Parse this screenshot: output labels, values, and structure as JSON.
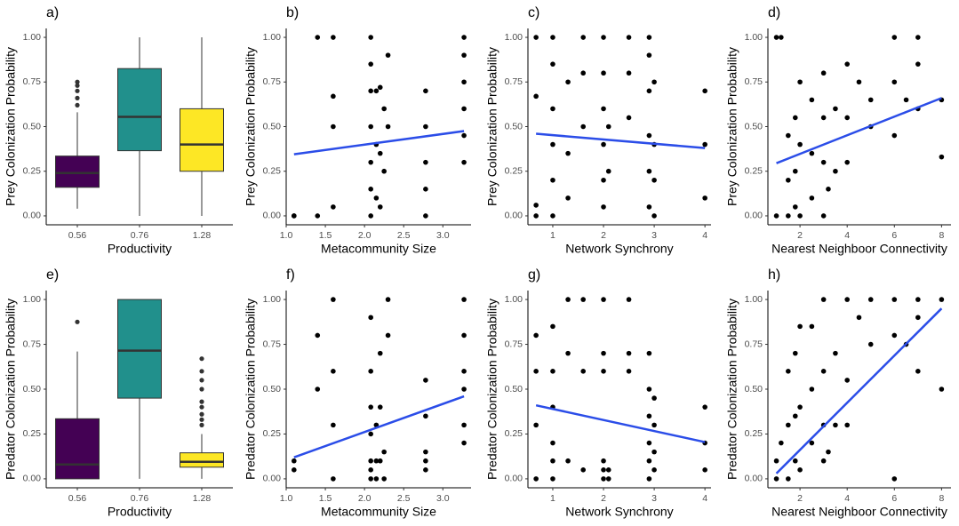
{
  "chart_data": [
    {
      "type": "box",
      "panel_label": "a)",
      "xlabel": "Productivity",
      "ylabel": "Prey Colonization Probability",
      "categories": [
        "0.56",
        "0.76",
        "1.28"
      ],
      "boxes": [
        {
          "q1": 0.16,
          "median": 0.24,
          "q3": 0.335,
          "whisker_low": 0.04,
          "whisker_high": 0.58,
          "outliers": [
            0.62,
            0.66,
            0.7,
            0.73,
            0.75
          ],
          "color": "#440154"
        },
        {
          "q1": 0.365,
          "median": 0.555,
          "q3": 0.825,
          "whisker_low": 0,
          "whisker_high": 1,
          "outliers": [],
          "color": "#21908c"
        },
        {
          "q1": 0.25,
          "median": 0.4,
          "q3": 0.6,
          "whisker_low": 0,
          "whisker_high": 1,
          "outliers": [],
          "color": "#fde725"
        }
      ],
      "ylim": [
        -0.05,
        1.05
      ],
      "yticks": [
        {
          "value": 0,
          "label": "0.00"
        },
        {
          "value": 0.25,
          "label": "0.25"
        },
        {
          "value": 0.5,
          "label": "0.50"
        },
        {
          "value": 0.75,
          "label": "0.75"
        },
        {
          "value": 1,
          "label": "1.00"
        }
      ]
    },
    {
      "type": "scatter",
      "panel_label": "b)",
      "xlabel": "Metacommunity Size",
      "ylabel": "Prey Colonization Probability",
      "x": [
        1.1,
        1.1,
        1.4,
        1.4,
        1.6,
        1.6,
        1.6,
        1.6,
        2.08,
        2.08,
        2.08,
        2.08,
        2.08,
        2.08,
        2.08,
        2.15,
        2.15,
        2.15,
        2.2,
        2.2,
        2.2,
        2.25,
        2.25,
        2.3,
        2.3,
        2.78,
        2.78,
        2.78,
        2.78,
        2.78,
        3.27,
        3.27,
        3.27,
        3.27,
        3.27,
        3.27
      ],
      "y": [
        0,
        0,
        1,
        0,
        1,
        0.67,
        0.5,
        0.05,
        1,
        0.85,
        0.7,
        0.5,
        0.3,
        0.15,
        0,
        0.7,
        0.4,
        0.1,
        0.72,
        0.35,
        0.05,
        0.6,
        0.25,
        0.9,
        0.5,
        0.7,
        0.5,
        0.3,
        0.15,
        0,
        1,
        0.9,
        0.75,
        0.6,
        0.45,
        0.3
      ],
      "color": "#000000",
      "fit": {
        "x": [
          1.1,
          3.27
        ],
        "y": [
          0.345,
          0.475
        ],
        "color": "#2b4de8"
      },
      "xlim": [
        1.0,
        3.36
      ],
      "xticks": [
        {
          "value": 1,
          "label": "1.0"
        },
        {
          "value": 1.5,
          "label": "1.5"
        },
        {
          "value": 2,
          "label": "2.0"
        },
        {
          "value": 2.5,
          "label": "2.5"
        },
        {
          "value": 3,
          "label": "3.0"
        }
      ],
      "ylim": [
        -0.05,
        1.05
      ],
      "yticks": [
        {
          "value": 0,
          "label": "0.00"
        },
        {
          "value": 0.25,
          "label": "0.25"
        },
        {
          "value": 0.5,
          "label": "0.50"
        },
        {
          "value": 0.75,
          "label": "0.75"
        },
        {
          "value": 1,
          "label": "1.00"
        }
      ]
    },
    {
      "type": "scatter",
      "panel_label": "c)",
      "xlabel": "Network Synchrony",
      "ylabel": "Prey Colonization Probability",
      "x": [
        0.67,
        0.67,
        0.67,
        0.67,
        1,
        1,
        1,
        1,
        1,
        1,
        1.3,
        1.3,
        1.3,
        1.6,
        1.6,
        1.6,
        2,
        2,
        2,
        2,
        2,
        2,
        2.1,
        2.1,
        2.5,
        2.5,
        2.5,
        2.9,
        2.9,
        2.9,
        2.9,
        2.9,
        2.9,
        3,
        3,
        3,
        3,
        4,
        4,
        4
      ],
      "y": [
        1,
        0.67,
        0.06,
        0,
        1,
        0.85,
        0.6,
        0.4,
        0.2,
        0,
        0.75,
        0.35,
        0.1,
        1,
        0.8,
        0.5,
        1,
        0.8,
        0.6,
        0.4,
        0.2,
        0.05,
        0.5,
        0.25,
        1,
        0.8,
        0.55,
        1,
        0.9,
        0.7,
        0.45,
        0.25,
        0.05,
        0.75,
        0.4,
        0.2,
        0,
        0.7,
        0.4,
        0.1
      ],
      "color": "#000000",
      "fit": {
        "x": [
          0.67,
          4
        ],
        "y": [
          0.46,
          0.38
        ],
        "color": "#2b4de8"
      },
      "xlim": [
        0.51,
        4.12
      ],
      "xticks": [
        1,
        2,
        3,
        4
      ],
      "ylim": [
        -0.05,
        1.05
      ],
      "yticks": [
        {
          "value": 0,
          "label": "0.00"
        },
        {
          "value": 0.25,
          "label": "0.25"
        },
        {
          "value": 0.5,
          "label": "0.50"
        },
        {
          "value": 0.75,
          "label": "0.75"
        },
        {
          "value": 1,
          "label": "1.00"
        }
      ]
    },
    {
      "type": "scatter",
      "panel_label": "d)",
      "xlabel": "Nearest Neighboor Connectivity",
      "ylabel": "Prey Colonization Probability",
      "x": [
        1,
        1,
        1.2,
        1.5,
        1.5,
        1.5,
        1.8,
        1.8,
        1.8,
        2,
        2,
        2,
        2.5,
        2.5,
        2.5,
        3,
        3,
        3,
        3,
        3.2,
        3.5,
        3.5,
        4,
        4,
        4,
        4.5,
        5,
        5,
        6,
        6,
        6,
        6.5,
        7,
        7,
        7,
        8,
        8
      ],
      "y": [
        1,
        0,
        1,
        0.45,
        0.2,
        0,
        0.55,
        0.25,
        0.05,
        0.75,
        0.4,
        0,
        0.65,
        0.35,
        0.1,
        0.8,
        0.55,
        0.3,
        0,
        0.15,
        0.6,
        0.25,
        0.85,
        0.55,
        0.3,
        0.75,
        0.5,
        0.65,
        1,
        0.75,
        0.45,
        0.65,
        1,
        0.85,
        0.6,
        0.65,
        0.33
      ],
      "color": "#000000",
      "fit": {
        "x": [
          1,
          8
        ],
        "y": [
          0.295,
          0.66
        ],
        "color": "#2b4de8"
      },
      "xlim": [
        0.64,
        8.4
      ],
      "xticks": [
        2,
        4,
        6,
        8
      ],
      "ylim": [
        -0.05,
        1.05
      ],
      "yticks": [
        {
          "value": 0,
          "label": "0.00"
        },
        {
          "value": 0.25,
          "label": "0.25"
        },
        {
          "value": 0.5,
          "label": "0.50"
        },
        {
          "value": 0.75,
          "label": "0.75"
        },
        {
          "value": 1,
          "label": "1.00"
        }
      ]
    },
    {
      "type": "box",
      "panel_label": "e)",
      "xlabel": "Productivity",
      "ylabel": "Predator Colonization Probability",
      "categories": [
        "0.56",
        "0.76",
        "1.28"
      ],
      "boxes": [
        {
          "q1": 0,
          "median": 0.08,
          "q3": 0.335,
          "whisker_low": 0,
          "whisker_high": 0.71,
          "outliers": [
            0.875
          ],
          "color": "#440154"
        },
        {
          "q1": 0.45,
          "median": 0.715,
          "q3": 1,
          "whisker_low": 0,
          "whisker_high": 1,
          "outliers": [],
          "color": "#21908c"
        },
        {
          "q1": 0.065,
          "median": 0.095,
          "q3": 0.145,
          "whisker_low": 0,
          "whisker_high": 0.25,
          "outliers": [
            0.3,
            0.33,
            0.36,
            0.4,
            0.43,
            0.5,
            0.55,
            0.6,
            0.67
          ],
          "color": "#fde725"
        }
      ],
      "ylim": [
        -0.05,
        1.05
      ],
      "yticks": [
        {
          "value": 0,
          "label": "0.00"
        },
        {
          "value": 0.25,
          "label": "0.25"
        },
        {
          "value": 0.5,
          "label": "0.50"
        },
        {
          "value": 0.75,
          "label": "0.75"
        },
        {
          "value": 1,
          "label": "1.00"
        }
      ]
    },
    {
      "type": "scatter",
      "panel_label": "f)",
      "xlabel": "Metacommunity Size",
      "ylabel": "Predator Colonization Probability",
      "x": [
        1.1,
        1.1,
        1.4,
        1.4,
        1.6,
        1.6,
        1.6,
        1.6,
        2.08,
        2.08,
        2.08,
        2.08,
        2.08,
        2.08,
        2.08,
        2.15,
        2.15,
        2.15,
        2.2,
        2.2,
        2.2,
        2.25,
        2.25,
        2.3,
        2.3,
        2.78,
        2.78,
        2.78,
        2.78,
        2.78,
        3.27,
        3.27,
        3.27,
        3.27,
        3.27,
        3.27
      ],
      "y": [
        0.1,
        0.05,
        0.8,
        0.5,
        1,
        0.6,
        0.3,
        0,
        0.9,
        0.6,
        0.4,
        0.25,
        0.1,
        0.05,
        0,
        0.3,
        0.1,
        0,
        0.7,
        0.4,
        0.1,
        0.15,
        0,
        1,
        0.8,
        0.55,
        0.35,
        0.15,
        0.1,
        0.05,
        1,
        0.8,
        0.6,
        0.5,
        0.3,
        0.2
      ],
      "color": "#000000",
      "fit": {
        "x": [
          1.1,
          3.27
        ],
        "y": [
          0.12,
          0.46
        ],
        "color": "#2b4de8"
      },
      "xlim": [
        1.0,
        3.36
      ],
      "xticks": [
        {
          "value": 1,
          "label": "1.0"
        },
        {
          "value": 1.5,
          "label": "1.5"
        },
        {
          "value": 2,
          "label": "2.0"
        },
        {
          "value": 2.5,
          "label": "2.5"
        },
        {
          "value": 3,
          "label": "3.0"
        }
      ],
      "ylim": [
        -0.05,
        1.05
      ],
      "yticks": [
        {
          "value": 0,
          "label": "0.00"
        },
        {
          "value": 0.25,
          "label": "0.25"
        },
        {
          "value": 0.5,
          "label": "0.50"
        },
        {
          "value": 0.75,
          "label": "0.75"
        },
        {
          "value": 1,
          "label": "1.00"
        }
      ]
    },
    {
      "type": "scatter",
      "panel_label": "g)",
      "xlabel": "Network Synchrony",
      "ylabel": "Predator Colonization Probability",
      "x": [
        0.67,
        0.67,
        0.67,
        0.67,
        1,
        1,
        1,
        1,
        1,
        1,
        1.3,
        1.3,
        1.3,
        1.6,
        1.6,
        1.6,
        2,
        2,
        2,
        2,
        2,
        2,
        2.1,
        2.1,
        2.5,
        2.5,
        2.5,
        2.9,
        2.9,
        2.9,
        2.9,
        2.9,
        2.9,
        3,
        3,
        3,
        3,
        4,
        4,
        4
      ],
      "y": [
        0.8,
        0.6,
        0.3,
        0,
        0.85,
        0.6,
        0.4,
        0.2,
        0.1,
        0,
        1,
        0.7,
        0.1,
        1,
        0.6,
        0.05,
        1,
        0.7,
        0.6,
        0.1,
        0.05,
        0,
        0.05,
        0,
        1,
        0.7,
        0.6,
        0.7,
        0.5,
        0.35,
        0.2,
        0.1,
        0,
        0.45,
        0.3,
        0.15,
        0.05,
        0.4,
        0.2,
        0.05
      ],
      "color": "#000000",
      "fit": {
        "x": [
          0.67,
          4
        ],
        "y": [
          0.41,
          0.205
        ],
        "color": "#2b4de8"
      },
      "xlim": [
        0.51,
        4.12
      ],
      "xticks": [
        1,
        2,
        3,
        4
      ],
      "ylim": [
        -0.05,
        1.05
      ],
      "yticks": [
        {
          "value": 0,
          "label": "0.00"
        },
        {
          "value": 0.25,
          "label": "0.25"
        },
        {
          "value": 0.5,
          "label": "0.50"
        },
        {
          "value": 0.75,
          "label": "0.75"
        },
        {
          "value": 1,
          "label": "1.00"
        }
      ]
    },
    {
      "type": "scatter",
      "panel_label": "h)",
      "xlabel": "Nearest Neighboor Connectivity",
      "ylabel": "Predator Colonization Probability",
      "x": [
        1,
        1,
        1.2,
        1.5,
        1.5,
        1.5,
        1.8,
        1.8,
        1.8,
        2,
        2,
        2,
        2.5,
        2.5,
        2.5,
        3,
        3,
        3,
        3,
        3.2,
        3.5,
        3.5,
        4,
        4,
        4,
        4.5,
        5,
        5,
        6,
        6,
        6,
        6.5,
        7,
        7,
        7,
        8,
        8
      ],
      "y": [
        0.1,
        0,
        0.2,
        0.6,
        0.3,
        0,
        0.7,
        0.35,
        0.1,
        0.85,
        0.4,
        0.05,
        0.85,
        0.5,
        0.2,
        1,
        0.6,
        0.3,
        0.1,
        0.15,
        0.7,
        0.3,
        1,
        0.55,
        0.3,
        0.9,
        1,
        0.75,
        1,
        0.8,
        0,
        0.75,
        1,
        0.9,
        0.6,
        1,
        0.5
      ],
      "color": "#000000",
      "fit": {
        "x": [
          1,
          8
        ],
        "y": [
          0.03,
          0.95
        ],
        "color": "#2b4de8"
      },
      "xlim": [
        0.64,
        8.4
      ],
      "xticks": [
        2,
        4,
        6,
        8
      ],
      "ylim": [
        -0.05,
        1.05
      ],
      "yticks": [
        {
          "value": 0,
          "label": "0.00"
        },
        {
          "value": 0.25,
          "label": "0.25"
        },
        {
          "value": 0.5,
          "label": "0.50"
        },
        {
          "value": 0.75,
          "label": "0.75"
        },
        {
          "value": 1,
          "label": "1.00"
        }
      ]
    }
  ]
}
